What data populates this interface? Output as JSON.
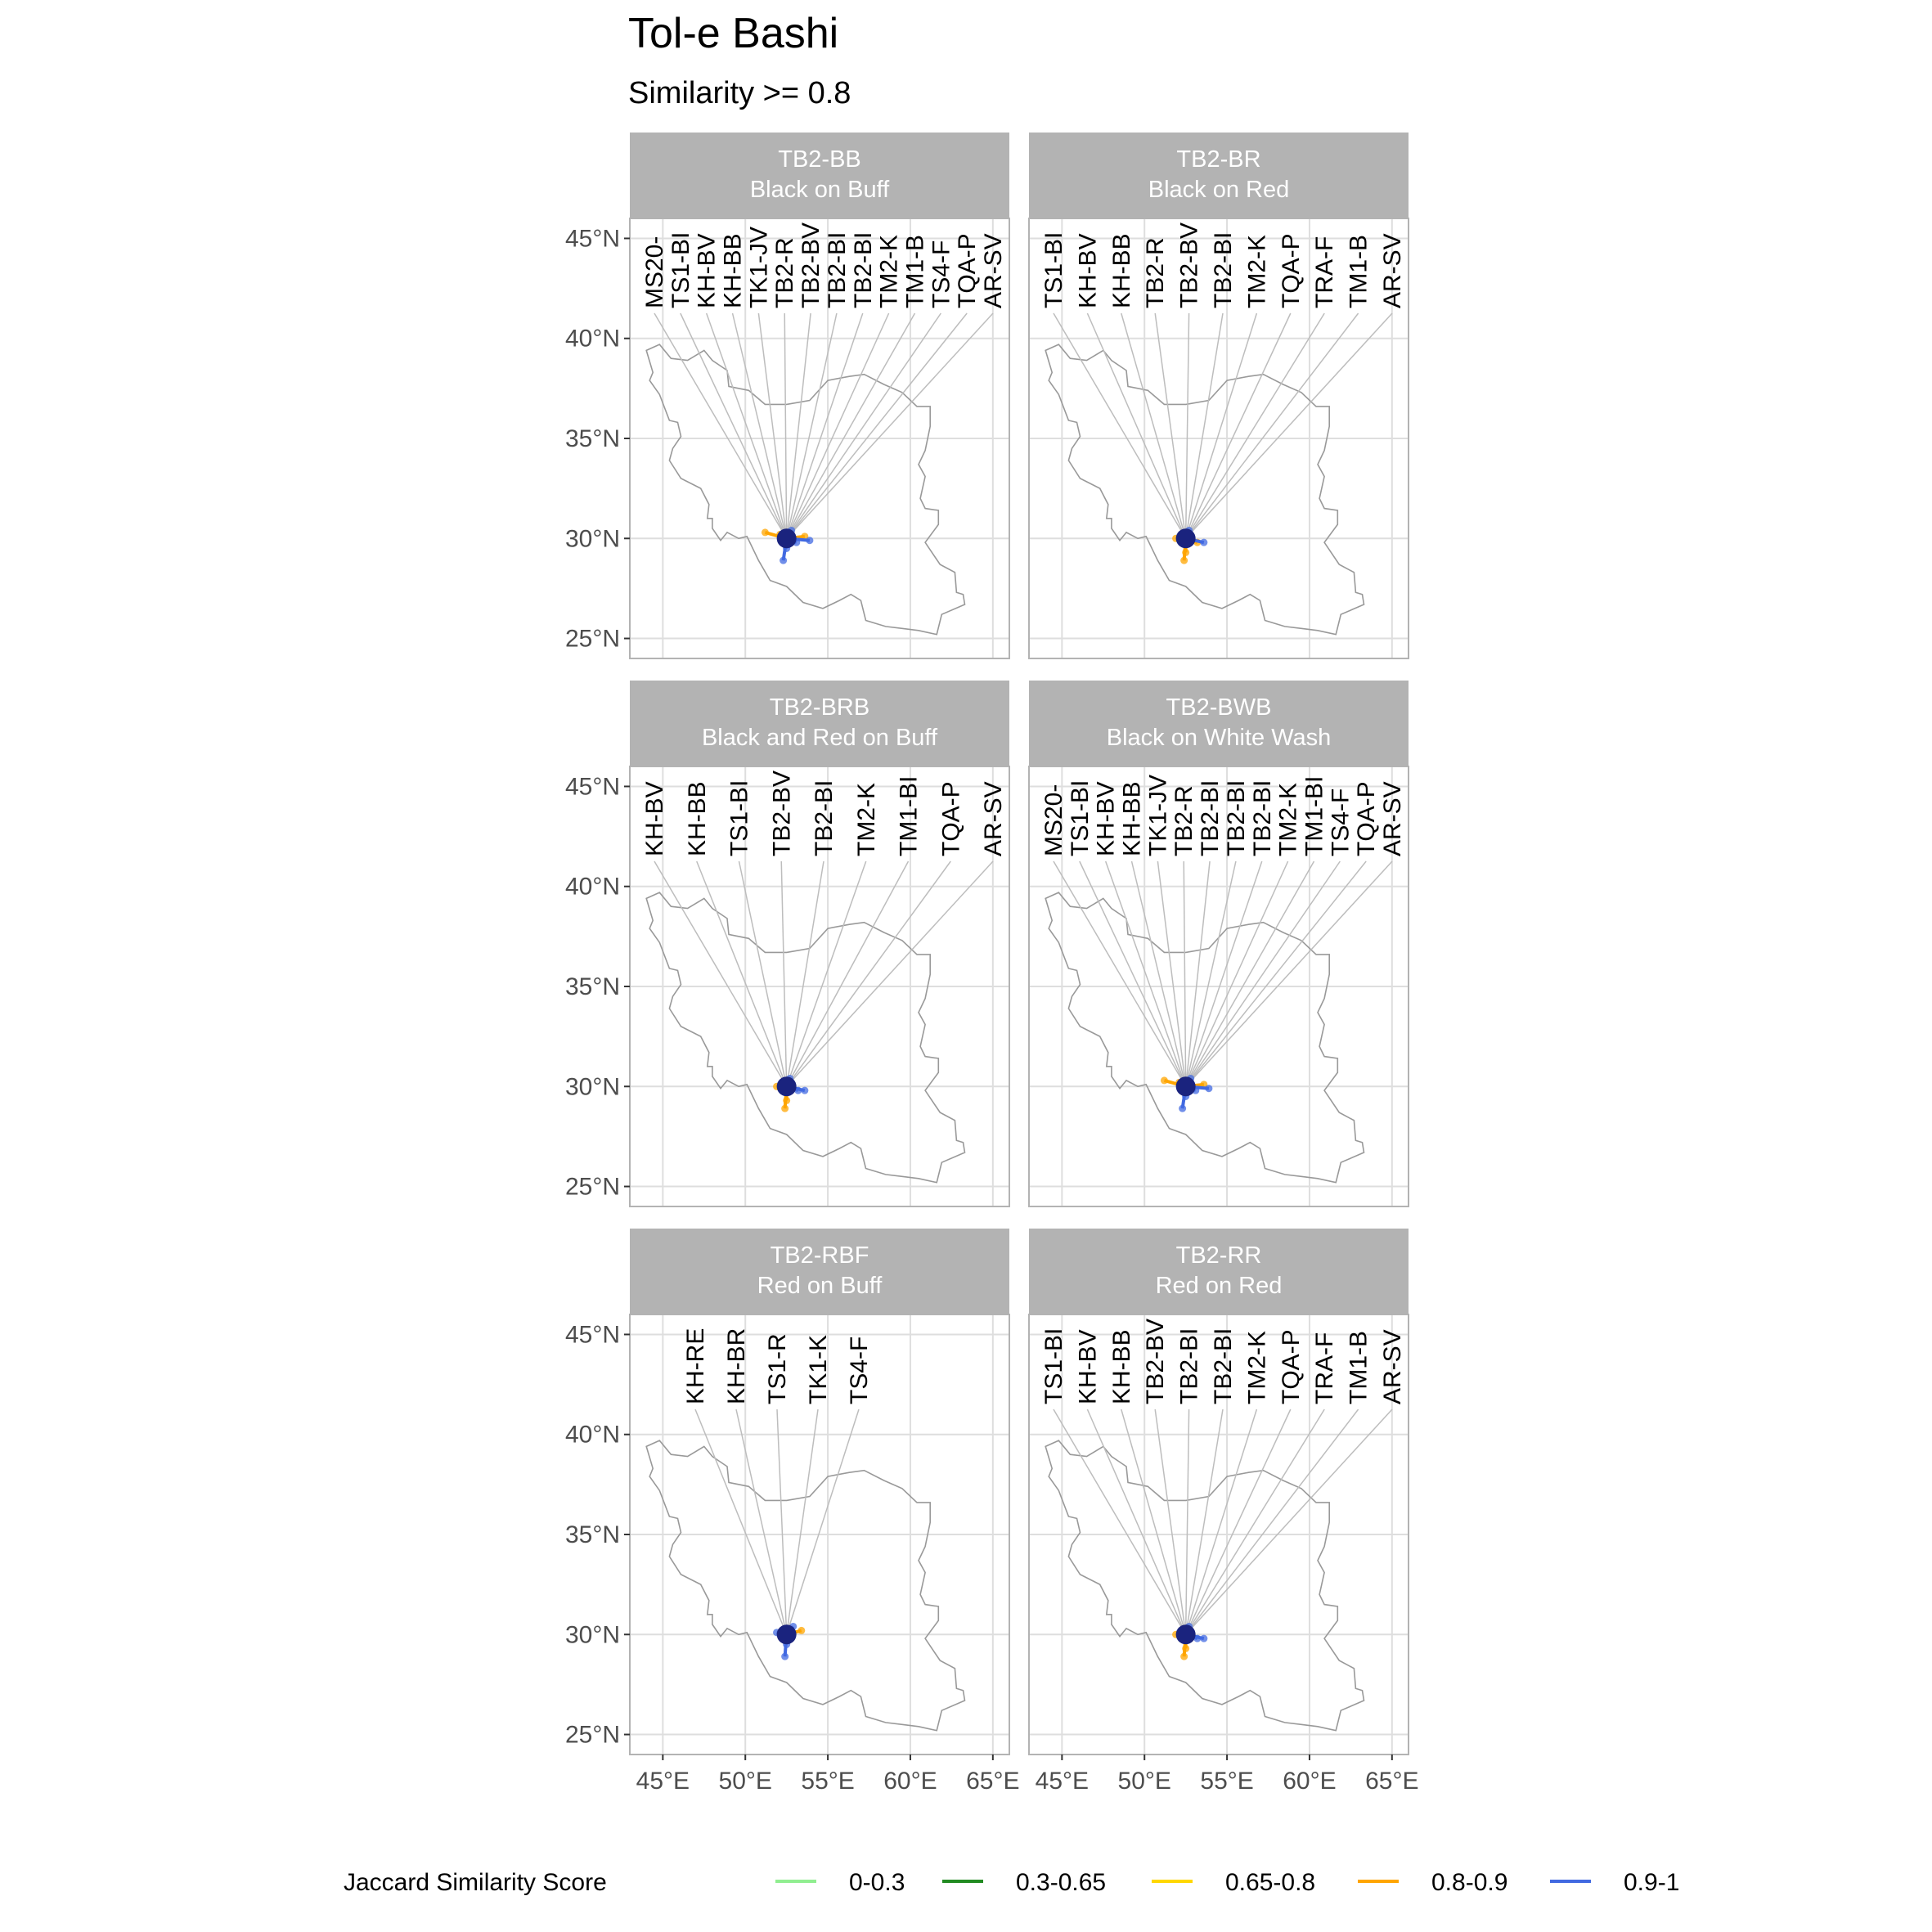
{
  "chart_data": {
    "type": "map-facets",
    "title": "Tol-e Bashi",
    "subtitle": "Similarity >= 0.8",
    "xlim": [
      43,
      66
    ],
    "ylim": [
      24,
      46
    ],
    "x_ticks": [
      45,
      50,
      55,
      60,
      65
    ],
    "x_tick_labels": [
      "45°E",
      "50°E",
      "55°E",
      "60°E",
      "65°E"
    ],
    "y_ticks": [
      25,
      30,
      35,
      40,
      45
    ],
    "y_tick_labels": [
      "25°N",
      "30°N",
      "35°N",
      "40°N",
      "45°N"
    ],
    "grid": true,
    "origin": {
      "lon": 52.5,
      "lat": 30.0
    },
    "colors": {
      "strip_bg": "#b3b3b3",
      "panel_border": "#b3b3b3",
      "grid": "#dedede",
      "border_line": "#999999",
      "leader": "#bdbdbd",
      "origin_fill": "#1a237e",
      "0-0.3": "#90ee90",
      "0.3-0.65": "#228b22",
      "0.65-0.8": "#ffd700",
      "0.8-0.9": "#ffa500",
      "0.9-1": "#4169e1"
    },
    "facets": [
      {
        "code": "TB2-BB",
        "name": "Black on Buff",
        "labels": [
          "MS20-",
          "TS1-BI",
          "KH-BV",
          "KH-BB",
          "TK1-JV",
          "TB2-R",
          "TB2-BV",
          "TB2-BI",
          "TB2-BI",
          "TM2-K",
          "TM1-B",
          "TS4-F",
          "TQA-P",
          "AR-SV"
        ],
        "links": [
          {
            "lon": 51.2,
            "lat": 30.3,
            "class": "0.8-0.9"
          },
          {
            "lon": 52.1,
            "lat": 30.2,
            "class": "0.8-0.9"
          },
          {
            "lon": 52.5,
            "lat": 29.5,
            "class": "0.9-1"
          },
          {
            "lon": 52.7,
            "lat": 29.9,
            "class": "0.9-1"
          },
          {
            "lon": 52.3,
            "lat": 28.9,
            "class": "0.9-1"
          },
          {
            "lon": 53.1,
            "lat": 29.8,
            "class": "0.9-1"
          },
          {
            "lon": 53.6,
            "lat": 30.1,
            "class": "0.8-0.9"
          },
          {
            "lon": 52.8,
            "lat": 30.4,
            "class": "0.9-1"
          },
          {
            "lon": 52.2,
            "lat": 30.1,
            "class": "0.9-1"
          },
          {
            "lon": 53.9,
            "lat": 29.9,
            "class": "0.9-1"
          }
        ]
      },
      {
        "code": "TB2-BR",
        "name": "Black on Red",
        "labels": [
          "TS1-BI",
          "KH-BV",
          "KH-BB",
          "TB2-R",
          "TB2-BV",
          "TB2-BI",
          "TM2-K",
          "TQA-P",
          "TRA-F",
          "TM1-B",
          "AR-SV"
        ],
        "links": [
          {
            "lon": 52.5,
            "lat": 29.3,
            "class": "0.8-0.9"
          },
          {
            "lon": 52.4,
            "lat": 28.9,
            "class": "0.8-0.9"
          },
          {
            "lon": 51.9,
            "lat": 30.0,
            "class": "0.8-0.9"
          },
          {
            "lon": 53.2,
            "lat": 29.8,
            "class": "0.8-0.9"
          },
          {
            "lon": 53.6,
            "lat": 29.8,
            "class": "0.9-1"
          },
          {
            "lon": 52.7,
            "lat": 30.4,
            "class": "0.9-1"
          }
        ]
      },
      {
        "code": "TB2-BRB",
        "name": "Black and Red on Buff",
        "labels": [
          "KH-BV",
          "KH-BB",
          "TS1-BI",
          "TB2-BV",
          "TB2-BI",
          "TM2-K",
          "TM1-BI",
          "TQA-P",
          "AR-SV"
        ],
        "links": [
          {
            "lon": 52.5,
            "lat": 29.3,
            "class": "0.8-0.9"
          },
          {
            "lon": 52.4,
            "lat": 28.9,
            "class": "0.8-0.9"
          },
          {
            "lon": 51.9,
            "lat": 30.0,
            "class": "0.8-0.9"
          },
          {
            "lon": 53.2,
            "lat": 29.8,
            "class": "0.9-1"
          },
          {
            "lon": 53.6,
            "lat": 29.8,
            "class": "0.9-1"
          },
          {
            "lon": 52.7,
            "lat": 30.4,
            "class": "0.9-1"
          }
        ]
      },
      {
        "code": "TB2-BWB",
        "name": "Black on White Wash",
        "labels": [
          "MS20-",
          "TS1-BI",
          "KH-BV",
          "KH-BB",
          "TK1-JV",
          "TB2-R",
          "TB2-BI",
          "TB2-BI",
          "TB2-BI",
          "TM2-K",
          "TM1-BI",
          "TS4-F",
          "TQA-P",
          "AR-SV"
        ],
        "links": [
          {
            "lon": 51.2,
            "lat": 30.3,
            "class": "0.8-0.9"
          },
          {
            "lon": 52.1,
            "lat": 30.2,
            "class": "0.8-0.9"
          },
          {
            "lon": 52.5,
            "lat": 29.5,
            "class": "0.9-1"
          },
          {
            "lon": 52.7,
            "lat": 29.9,
            "class": "0.9-1"
          },
          {
            "lon": 52.3,
            "lat": 28.9,
            "class": "0.9-1"
          },
          {
            "lon": 53.1,
            "lat": 29.8,
            "class": "0.9-1"
          },
          {
            "lon": 53.6,
            "lat": 30.1,
            "class": "0.8-0.9"
          },
          {
            "lon": 52.8,
            "lat": 30.4,
            "class": "0.9-1"
          },
          {
            "lon": 53.9,
            "lat": 29.9,
            "class": "0.9-1"
          }
        ]
      },
      {
        "code": "TB2-RBF",
        "name": "Red on Buff",
        "labels": [
          "KH-RE",
          "KH-BR",
          "TS1-R",
          "TK1-K",
          "TS4-F"
        ],
        "links": [
          {
            "lon": 52.4,
            "lat": 28.9,
            "class": "0.9-1"
          },
          {
            "lon": 52.5,
            "lat": 29.5,
            "class": "0.9-1"
          },
          {
            "lon": 53.4,
            "lat": 30.2,
            "class": "0.8-0.9"
          },
          {
            "lon": 52.9,
            "lat": 30.4,
            "class": "0.9-1"
          },
          {
            "lon": 51.9,
            "lat": 30.1,
            "class": "0.9-1"
          }
        ]
      },
      {
        "code": "TB2-RR",
        "name": "Red on Red",
        "labels": [
          "TS1-BI",
          "KH-BV",
          "KH-BB",
          "TB2-BV",
          "TB2-BI",
          "TB2-BI",
          "TM2-K",
          "TQA-P",
          "TRA-F",
          "TM1-B",
          "AR-SV"
        ],
        "links": [
          {
            "lon": 52.5,
            "lat": 29.3,
            "class": "0.8-0.9"
          },
          {
            "lon": 52.4,
            "lat": 28.9,
            "class": "0.8-0.9"
          },
          {
            "lon": 51.9,
            "lat": 30.0,
            "class": "0.8-0.9"
          },
          {
            "lon": 53.2,
            "lat": 29.8,
            "class": "0.9-1"
          },
          {
            "lon": 53.6,
            "lat": 29.8,
            "class": "0.9-1"
          },
          {
            "lon": 52.7,
            "lat": 30.4,
            "class": "0.9-1"
          }
        ]
      }
    ],
    "legend": {
      "title": "Jaccard Similarity Score",
      "position": "bottom",
      "items": [
        {
          "label": "0-0.3",
          "class": "0-0.3"
        },
        {
          "label": "0.3-0.65",
          "class": "0.3-0.65"
        },
        {
          "label": "0.65-0.8",
          "class": "0.65-0.8"
        },
        {
          "label": "0.8-0.9",
          "class": "0.8-0.9"
        },
        {
          "label": "0.9-1",
          "class": "0.9-1"
        }
      ]
    }
  }
}
